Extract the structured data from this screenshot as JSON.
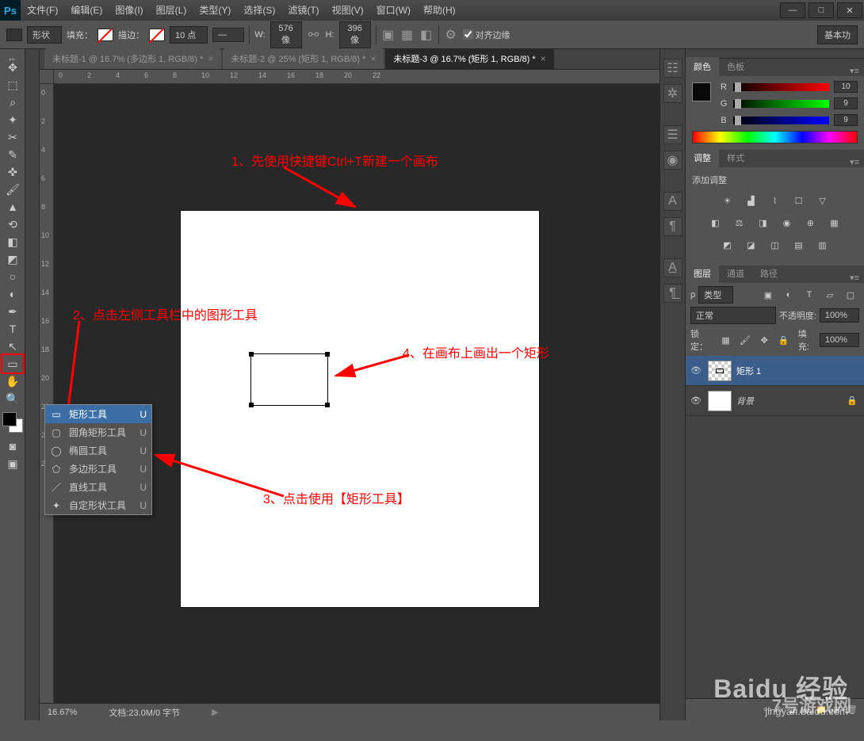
{
  "titlebar": {
    "logo": "Ps",
    "menu": [
      "文件(F)",
      "编辑(E)",
      "图像(I)",
      "图层(L)",
      "类型(Y)",
      "选择(S)",
      "滤镜(T)",
      "视图(V)",
      "窗口(W)",
      "帮助(H)"
    ],
    "win": {
      "min": "—",
      "max": "□",
      "close": "✕"
    }
  },
  "options": {
    "shape_mode": "形状",
    "fill_label": "填充：",
    "stroke_label": "描边：",
    "stroke_size": "10 点",
    "w_label": "W:",
    "w_val": "576 像",
    "h_label": "H:",
    "h_val": "396 像",
    "align_label": "对齐边缘",
    "essentials": "基本功"
  },
  "tabs": [
    {
      "label": "未标题-1 @ 16.7% (多边形 1, RGB/8) *",
      "active": false
    },
    {
      "label": "未标题-2 @ 25% (矩形 1, RGB/8) *",
      "active": false
    },
    {
      "label": "未标题-3 @ 16.7% (矩形 1, RGB/8) *",
      "active": true
    }
  ],
  "ruler": [
    "0",
    "2",
    "4",
    "6",
    "8",
    "10",
    "12",
    "14",
    "16",
    "18",
    "20",
    "22"
  ],
  "ruler_v": [
    "0",
    "2",
    "4",
    "6",
    "8",
    "10",
    "12",
    "14",
    "16",
    "18",
    "20",
    "22",
    "24",
    "26"
  ],
  "annotations": {
    "a1": "1、先使用快捷键Ctrl+T新建一个画布",
    "a2": "2、点击左侧工具栏中的图形工具",
    "a3": "3、点击使用【矩形工具】",
    "a4": "4、在画布上画出一个矩形"
  },
  "flyout": [
    {
      "icon": "▭",
      "label": "矩形工具",
      "shortcut": "U",
      "selected": true
    },
    {
      "icon": "▢",
      "label": "圆角矩形工具",
      "shortcut": "U",
      "selected": false
    },
    {
      "icon": "◯",
      "label": "椭圆工具",
      "shortcut": "U",
      "selected": false
    },
    {
      "icon": "⬠",
      "label": "多边形工具",
      "shortcut": "U",
      "selected": false
    },
    {
      "icon": "／",
      "label": "直线工具",
      "shortcut": "U",
      "selected": false
    },
    {
      "icon": "✦",
      "label": "自定形状工具",
      "shortcut": "U",
      "selected": false
    }
  ],
  "status": {
    "zoom": "16.67%",
    "doc": "文档:23.0M/0 字节"
  },
  "color_panel": {
    "tabs": [
      "颜色",
      "色板"
    ],
    "r": {
      "label": "R",
      "val": "10"
    },
    "g": {
      "label": "G",
      "val": "9"
    },
    "b": {
      "label": "B",
      "val": "9"
    }
  },
  "adjust_panel": {
    "tabs": [
      "调整",
      "样式"
    ],
    "title": "添加调整"
  },
  "layers_panel": {
    "tabs": [
      "图层",
      "通道",
      "路径"
    ],
    "filter_label": "类型",
    "blend": "正常",
    "opacity_label": "不透明度:",
    "opacity": "100%",
    "lock_label": "锁定：",
    "fill_label": "填充:",
    "fill": "100%",
    "layers": [
      {
        "name": "矩形 1",
        "selected": true,
        "checker": true,
        "locked": false
      },
      {
        "name": "背景",
        "selected": false,
        "checker": false,
        "locked": true,
        "italic": true
      }
    ]
  },
  "watermark": {
    "main": "Baidu 经验",
    "sub": "jingyan.baidu.com",
    "logo": "7号游戏网"
  },
  "colors": {
    "annotation": "#ff0000",
    "panel_bg": "#535353",
    "canvas_bg": "#282828"
  }
}
